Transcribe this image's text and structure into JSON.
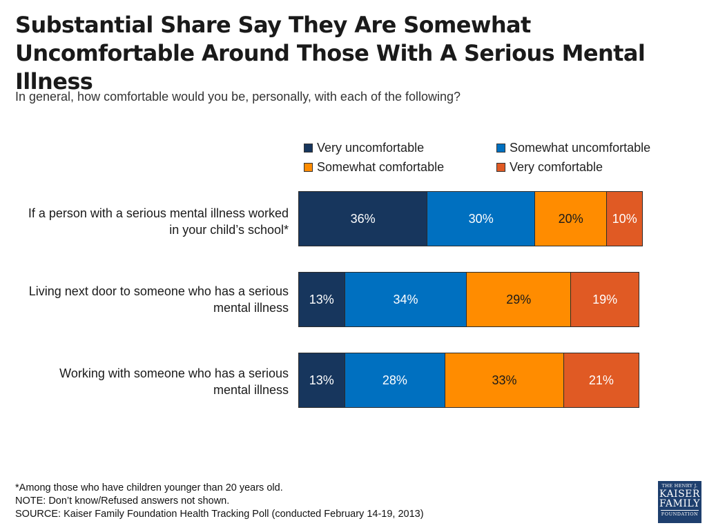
{
  "title": "Substantial Share Say They Are Somewhat Uncomfortable Around Those With A Serious Mental Illness",
  "subtitle": "In general, how comfortable would you be, personally, with each of the following?",
  "colors": {
    "very_uncomfortable": "#17365d",
    "somewhat_uncomfortable": "#0070c0",
    "somewhat_comfortable": "#ff8c00",
    "very_comfortable": "#e05a24"
  },
  "chart_data": {
    "type": "bar",
    "orientation": "horizontal",
    "stacked": true,
    "categories": [
      "If a person with a serious mental illness worked in your child’s school*",
      "Living next door to someone who has a serious mental illness",
      "Working with someone who has a serious mental illness"
    ],
    "series": [
      {
        "name": "Very uncomfortable",
        "values": [
          36,
          13,
          13
        ],
        "labels": [
          "36%",
          "13%",
          "13%"
        ]
      },
      {
        "name": "Somewhat uncomfortable",
        "values": [
          30,
          34,
          28
        ],
        "labels": [
          "30%",
          "34%",
          "28%"
        ]
      },
      {
        "name": "Somewhat comfortable",
        "values": [
          20,
          29,
          33
        ],
        "labels": [
          "20%",
          "29%",
          "33%"
        ]
      },
      {
        "name": "Very comfortable",
        "values": [
          10,
          19,
          21
        ],
        "labels": [
          "10%",
          "19%",
          "21%"
        ]
      }
    ],
    "legend": "top"
  },
  "footnotes": {
    "asterisk": "*Among those who have children younger than 20 years old.",
    "note": "NOTE: Don’t know/Refused answers not shown.",
    "source": "SOURCE: Kaiser Family Foundation Health Tracking Poll (conducted February 14-19, 2013)"
  },
  "logo": {
    "line1": "THE HENRY J.",
    "line2": "KAISER",
    "line3": "FAMILY",
    "line4": "FOUNDATION"
  }
}
